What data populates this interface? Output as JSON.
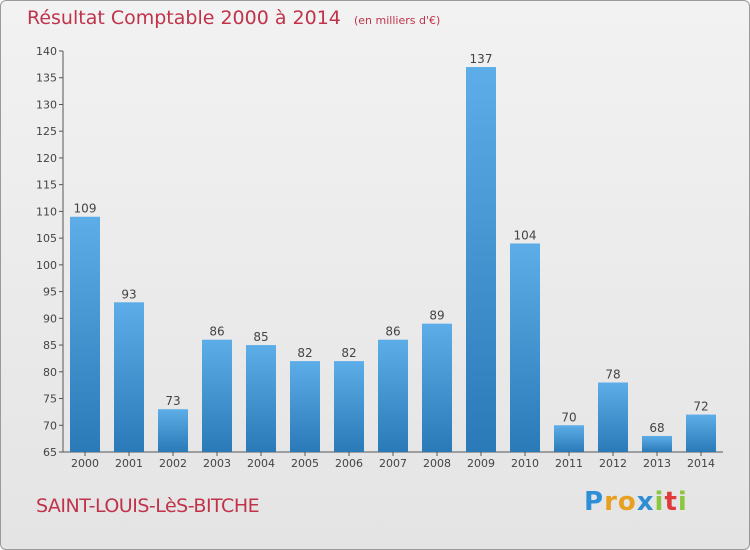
{
  "header": {
    "title": "Résultat Comptable 2000 à 2014",
    "subtitle": "(en milliers d'€)"
  },
  "footer": {
    "commune": "SAINT-LOUIS-LèS-BITCHE",
    "logo_letters": [
      "P",
      "r",
      "o",
      "x",
      "i",
      "t",
      "i"
    ],
    "logo_colors": [
      "#2e8fd6",
      "#e8a020",
      "#e8a020",
      "#2e8fd6",
      "#8cc63f",
      "#e03a3a",
      "#8cc63f"
    ]
  },
  "colors": {
    "bar_light": "#5dade8",
    "bar_dark": "#2a7ab8",
    "axis": "#555555",
    "text": "#444444"
  },
  "chart_data": {
    "type": "bar",
    "title": "Résultat Comptable 2000 à 2014",
    "categories": [
      "2000",
      "2001",
      "2002",
      "2003",
      "2004",
      "2005",
      "2006",
      "2007",
      "2008",
      "2009",
      "2010",
      "2011",
      "2012",
      "2013",
      "2014"
    ],
    "values": [
      109,
      93,
      73,
      86,
      85,
      82,
      82,
      86,
      89,
      137,
      104,
      70,
      78,
      68,
      72
    ],
    "ylim": [
      65,
      140
    ],
    "yticks": [
      65,
      70,
      75,
      80,
      85,
      90,
      95,
      100,
      105,
      110,
      115,
      120,
      125,
      130,
      135,
      140
    ],
    "grid": false,
    "data_labels": true
  }
}
